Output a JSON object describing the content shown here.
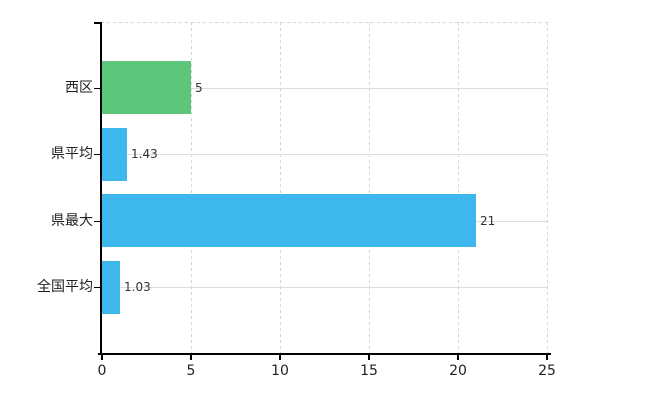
{
  "chart_data": {
    "type": "bar",
    "orientation": "horizontal",
    "title": "",
    "categories": [
      "西区",
      "県平均",
      "県最大",
      "全国平均"
    ],
    "series": [
      {
        "name": "",
        "values": [
          5,
          1.43,
          21,
          1.03
        ]
      }
    ],
    "value_labels": [
      "5",
      "1.43",
      "21",
      "1.03"
    ],
    "bar_colors": [
      "#5dc67a",
      "#3db7ec",
      "#3db7ec",
      "#3db7ec"
    ],
    "x_ticks": [
      "0",
      "5",
      "10",
      "15",
      "20",
      "25"
    ],
    "x_tick_values": [
      0,
      5,
      10,
      15,
      20,
      25
    ],
    "xlim": [
      0,
      25
    ],
    "grid": {
      "vertical_style": "dashed",
      "horizontal_style": "solid",
      "color": "#d9d9d9",
      "top_border": "dashed"
    },
    "legend": "none",
    "axis_color": "#000000",
    "label_color": "#333333",
    "background": "#ffffff"
  }
}
